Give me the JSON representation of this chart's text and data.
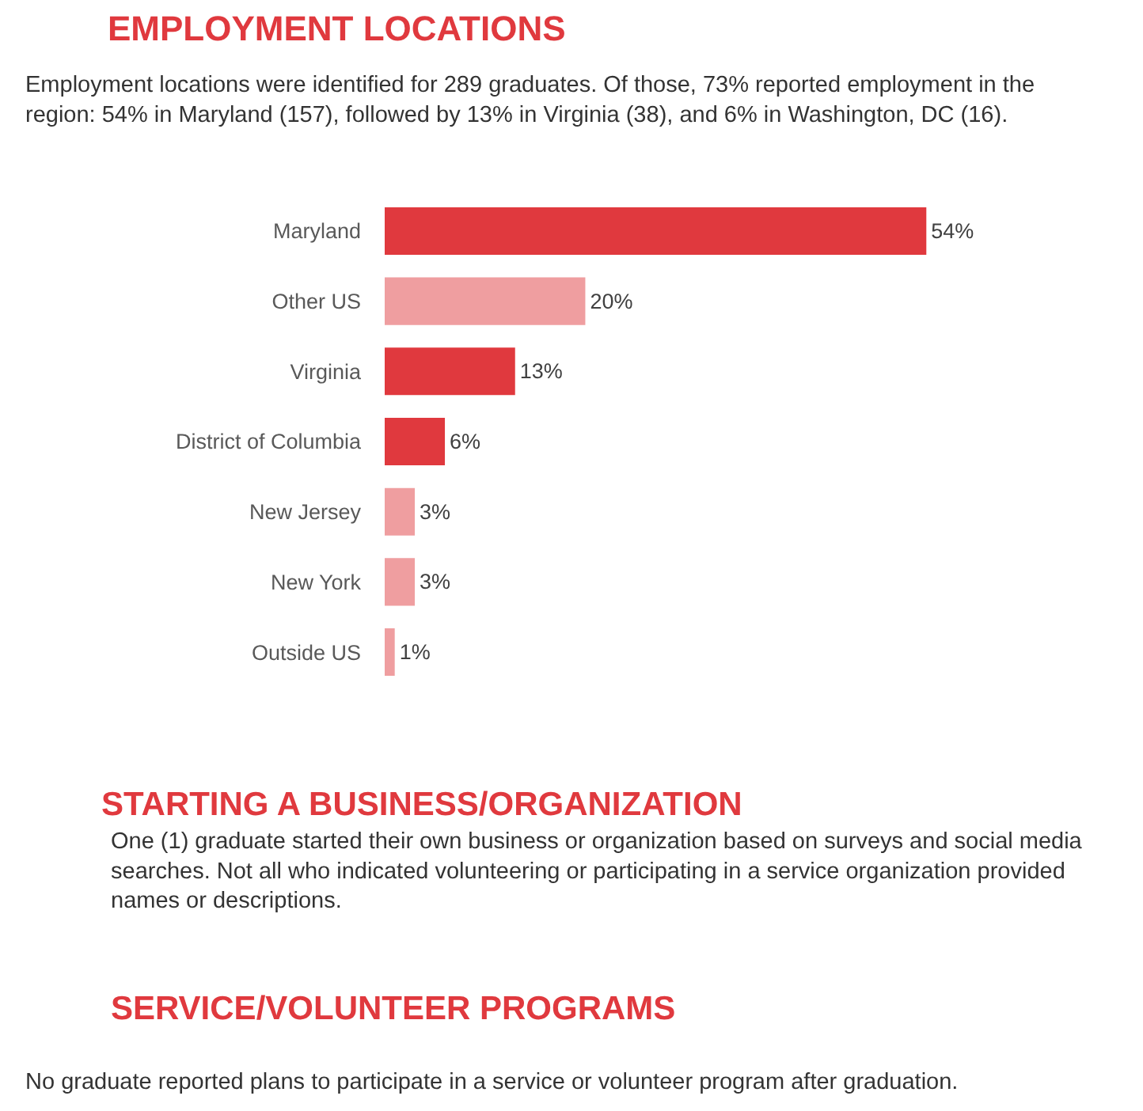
{
  "chart_data": {
    "type": "bar",
    "orientation": "horizontal",
    "title": "EMPLOYMENT LOCATIONS",
    "subtitle": "Employment locations were identified for 289 graduates. Of those, 73% reported employment in the region: 54% in Maryland (157), followed by 13% in Virginia (38), and 6% in Washington, DC (16).",
    "categories": [
      "Maryland",
      "Other US",
      "Virginia",
      "District of Columbia",
      "New Jersey",
      "New York",
      "Outside US"
    ],
    "values": [
      54,
      20,
      13,
      6,
      3,
      3,
      1
    ],
    "colors": [
      "#e0393e",
      "#ef9ea0",
      "#e0393e",
      "#e0393e",
      "#ef9ea0",
      "#ef9ea0",
      "#ef9ea0"
    ],
    "value_labels": [
      "54%",
      "20%",
      "13%",
      "6%",
      "3%",
      "3%",
      "1%"
    ],
    "annotations": [
      "STARTING A BUSINESS/ORGANIZATION",
      "One (1) graduate started their own business or organization based on surveys and social media searches. Not all who indicated volunteering or participating in a service organization provided names or descriptions.",
      "SERVICE/VOLUNTEER PROGRAMS",
      "No graduate reported plans to participate in a service or volunteer program after graduation."
    ]
  }
}
